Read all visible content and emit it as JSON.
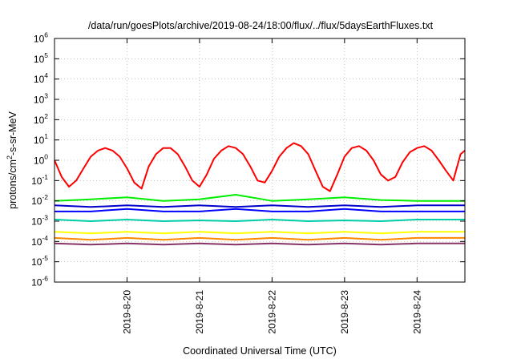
{
  "chart_data": {
    "type": "line",
    "title": "/data/run/goesPlots/archive/2019-08-24/18:00/flux/../flux/5daysEarthFluxes.txt",
    "xlabel": "Coordinated Universal Time (UTC)",
    "ylabel_parts": {
      "pre": "protons/cm",
      "sup": "2",
      "post": "-s-sr-MeV"
    },
    "y_scale": "log",
    "ylim": [
      1e-06,
      1000000.0
    ],
    "xlim": [
      0,
      5.66
    ],
    "grid": true,
    "legend": "none",
    "y_ticks": [
      {
        "base": "10",
        "exp": "-6",
        "value": 1e-06
      },
      {
        "base": "10",
        "exp": "-5",
        "value": 1e-05
      },
      {
        "base": "10",
        "exp": "-4",
        "value": 0.0001
      },
      {
        "base": "10",
        "exp": "-3",
        "value": 0.001
      },
      {
        "base": "10",
        "exp": "-2",
        "value": 0.01
      },
      {
        "base": "10",
        "exp": "-1",
        "value": 0.1
      },
      {
        "base": "10",
        "exp": "0",
        "value": 1
      },
      {
        "base": "10",
        "exp": "1",
        "value": 10
      },
      {
        "base": "10",
        "exp": "2",
        "value": 100
      },
      {
        "base": "10",
        "exp": "3",
        "value": 1000
      },
      {
        "base": "10",
        "exp": "4",
        "value": 10000
      },
      {
        "base": "10",
        "exp": "5",
        "value": 100000
      },
      {
        "base": "10",
        "exp": "6",
        "value": 1000000
      }
    ],
    "x_ticks": [
      {
        "label": "2019-8-20",
        "x": 1.0
      },
      {
        "label": "2019-8-21",
        "x": 2.0
      },
      {
        "label": "2019-8-22",
        "x": 3.0
      },
      {
        "label": "2019-8-23",
        "x": 4.0
      },
      {
        "label": "2019-8-24",
        "x": 5.0
      }
    ],
    "series": [
      {
        "color": "#ff0000",
        "x": [
          0,
          0.1,
          0.2,
          0.3,
          0.4,
          0.5,
          0.6,
          0.7,
          0.8,
          0.9,
          1.0,
          1.1,
          1.2,
          1.3,
          1.4,
          1.5,
          1.6,
          1.7,
          1.8,
          1.9,
          2.0,
          2.1,
          2.2,
          2.3,
          2.4,
          2.5,
          2.6,
          2.7,
          2.8,
          2.9,
          3.0,
          3.1,
          3.2,
          3.3,
          3.4,
          3.5,
          3.6,
          3.7,
          3.8,
          3.9,
          4.0,
          4.1,
          4.2,
          4.3,
          4.4,
          4.5,
          4.6,
          4.7,
          4.8,
          4.9,
          5.0,
          5.1,
          5.2,
          5.3,
          5.4,
          5.5,
          5.6,
          5.66
        ],
        "values": [
          1.0,
          0.15,
          0.05,
          0.1,
          0.4,
          1.5,
          3,
          4,
          3,
          1.5,
          0.4,
          0.08,
          0.04,
          0.5,
          2,
          4,
          4,
          2,
          0.5,
          0.1,
          0.05,
          0.2,
          1.2,
          3,
          5,
          4,
          2,
          0.5,
          0.1,
          0.08,
          0.3,
          1.5,
          4,
          7,
          5,
          2,
          0.3,
          0.05,
          0.03,
          0.2,
          1.5,
          4,
          5,
          3,
          1.0,
          0.2,
          0.1,
          0.15,
          0.8,
          2.5,
          4,
          5,
          3,
          1,
          0.3,
          0.1,
          2,
          3
        ]
      },
      {
        "color": "#00ee00",
        "x": [
          0,
          0.5,
          1,
          1.5,
          2,
          2.5,
          3,
          3.5,
          4,
          4.5,
          5,
          5.66
        ],
        "values": [
          0.01,
          0.012,
          0.015,
          0.01,
          0.012,
          0.02,
          0.01,
          0.012,
          0.015,
          0.011,
          0.01,
          0.01
        ]
      },
      {
        "color": "#0000cc",
        "x": [
          0,
          0.5,
          1,
          1.5,
          2,
          2.5,
          3,
          3.5,
          4,
          4.5,
          5,
          5.66
        ],
        "values": [
          0.006,
          0.005,
          0.006,
          0.005,
          0.006,
          0.005,
          0.006,
          0.005,
          0.006,
          0.005,
          0.006,
          0.006
        ]
      },
      {
        "color": "#0000ff",
        "x": [
          0,
          0.5,
          1,
          1.5,
          2,
          2.5,
          3,
          3.5,
          4,
          4.5,
          5,
          5.66
        ],
        "values": [
          0.003,
          0.003,
          0.004,
          0.003,
          0.003,
          0.004,
          0.003,
          0.003,
          0.004,
          0.003,
          0.003,
          0.003
        ]
      },
      {
        "color": "#00ccaa",
        "x": [
          0,
          0.5,
          1,
          1.5,
          2,
          2.5,
          3,
          3.5,
          4,
          4.5,
          5,
          5.66
        ],
        "values": [
          0.0012,
          0.001,
          0.0012,
          0.001,
          0.0011,
          0.001,
          0.0012,
          0.001,
          0.0011,
          0.001,
          0.0012,
          0.0012
        ]
      },
      {
        "color": "#ffff00",
        "x": [
          0,
          0.5,
          1,
          1.5,
          2,
          2.5,
          3,
          3.5,
          4,
          4.5,
          5,
          5.66
        ],
        "values": [
          0.0003,
          0.00025,
          0.0003,
          0.00025,
          0.0003,
          0.00025,
          0.0003,
          0.00025,
          0.0003,
          0.00025,
          0.0003,
          0.0003
        ]
      },
      {
        "color": "#ff8800",
        "x": [
          0,
          0.5,
          1,
          1.5,
          2,
          2.5,
          3,
          3.5,
          4,
          4.5,
          5,
          5.66
        ],
        "values": [
          0.00015,
          0.00012,
          0.00015,
          0.00012,
          0.00015,
          0.00012,
          0.00015,
          0.00012,
          0.00015,
          0.00012,
          0.00015,
          0.00015
        ]
      },
      {
        "color": "#883366",
        "x": [
          0,
          0.5,
          1,
          1.5,
          2,
          2.5,
          3,
          3.5,
          4,
          4.5,
          5,
          5.66
        ],
        "values": [
          8e-05,
          7e-05,
          8e-05,
          7e-05,
          8e-05,
          7e-05,
          8e-05,
          7e-05,
          8e-05,
          7e-05,
          8e-05,
          8e-05
        ]
      }
    ]
  }
}
